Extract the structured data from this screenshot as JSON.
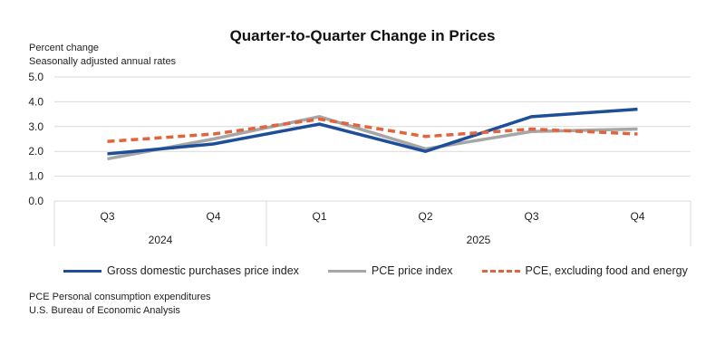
{
  "chart_data": {
    "type": "line",
    "title": "Quarter-to-Quarter Change in Prices",
    "ylabel": "Percent change",
    "subtitle": "Seasonally adjusted annual rates",
    "categories": [
      "Q3",
      "Q4",
      "Q1",
      "Q2",
      "Q3",
      "Q4"
    ],
    "groups": [
      {
        "label": "2024",
        "span": 2
      },
      {
        "label": "2025",
        "span": 4
      }
    ],
    "ylim": [
      0,
      5
    ],
    "yticks": [
      "0.0",
      "1.0",
      "2.0",
      "3.0",
      "4.0",
      "5.0"
    ],
    "grid": true,
    "legend_position": "bottom",
    "series": [
      {
        "name": "Gross domestic purchases price index",
        "color": "#1f4e99",
        "style": "solid",
        "values": [
          1.9,
          2.3,
          3.1,
          2.0,
          3.4,
          3.7
        ]
      },
      {
        "name": "PCE price index",
        "color": "#a6a6a6",
        "style": "solid",
        "values": [
          1.7,
          2.5,
          3.4,
          2.1,
          2.8,
          2.9
        ]
      },
      {
        "name": "PCE, excluding food and energy",
        "color": "#e0643c",
        "style": "dashed",
        "values": [
          2.4,
          2.7,
          3.3,
          2.6,
          2.9,
          2.7
        ]
      }
    ]
  },
  "footnotes": [
    "PCE Personal consumption expenditures",
    "U.S. Bureau of Economic Analysis"
  ]
}
